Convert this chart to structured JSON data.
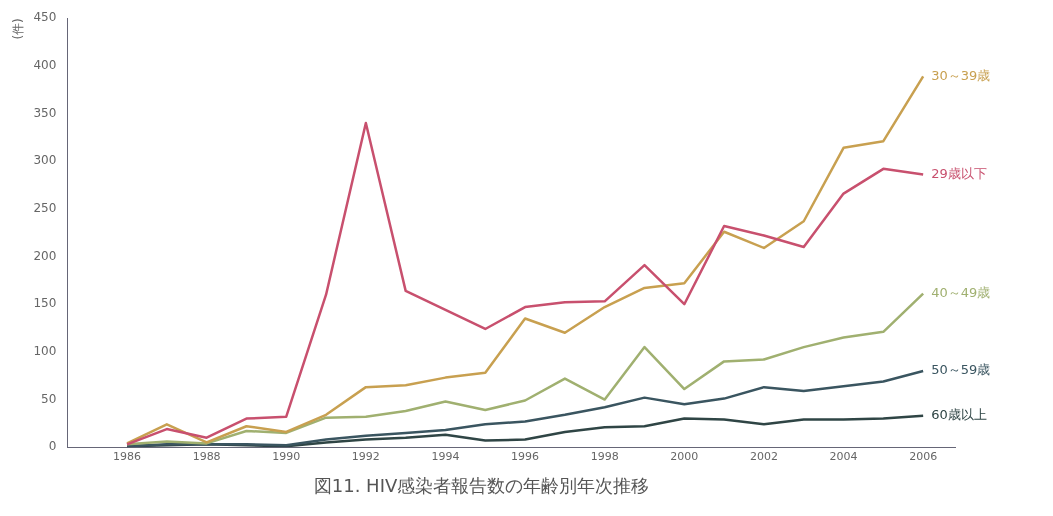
{
  "chart_data": {
    "type": "line",
    "title": "図11. HIV感染者報告数の年齢別年次推移",
    "ylabel": "(件)",
    "x": [
      1986,
      1987,
      1988,
      1989,
      1990,
      1991,
      1992,
      1993,
      1994,
      1995,
      1996,
      1997,
      1998,
      1999,
      2000,
      2001,
      2002,
      2003,
      2004,
      2005,
      2006
    ],
    "series": [
      {
        "name": "29歳以下",
        "color": "#c8506e",
        "values": [
          3,
          19,
          10,
          30,
          32,
          160,
          340,
          164,
          144,
          124,
          147,
          152,
          153,
          191,
          150,
          232,
          222,
          210,
          266,
          292,
          286
        ]
      },
      {
        "name": "30～39歳",
        "color": "#c8a050",
        "values": [
          4,
          24,
          5,
          22,
          16,
          34,
          63,
          65,
          73,
          78,
          135,
          120,
          147,
          167,
          172,
          226,
          209,
          237,
          314,
          321,
          389
        ]
      },
      {
        "name": "40～49歳",
        "color": "#a0b070",
        "values": [
          3,
          6,
          4,
          17,
          15,
          31,
          32,
          38,
          48,
          39,
          49,
          72,
          50,
          105,
          61,
          90,
          92,
          105,
          115,
          121,
          161
        ]
      },
      {
        "name": "50～59歳",
        "color": "#3a5560",
        "values": [
          1,
          3,
          3,
          3,
          2,
          8,
          12,
          15,
          18,
          24,
          27,
          34,
          42,
          52,
          45,
          51,
          63,
          59,
          64,
          69,
          80
        ]
      },
      {
        "name": "60歳以上",
        "color": "#2f4545",
        "values": [
          1,
          2,
          3,
          2,
          1,
          5,
          8,
          10,
          13,
          7,
          8,
          16,
          21,
          22,
          30,
          29,
          24,
          29,
          29,
          30,
          33
        ]
      }
    ],
    "xlim": [
      1984.5,
      2006.8
    ],
    "xticks": [
      1986,
      1988,
      1990,
      1992,
      1994,
      1996,
      1998,
      2000,
      2002,
      2004,
      2006
    ],
    "ylim": [
      0,
      450
    ],
    "yticks": [
      0,
      50,
      100,
      150,
      200,
      250,
      300,
      350,
      400,
      450
    ],
    "grid": false,
    "legend": false,
    "marker": "none",
    "line_style": "solid"
  }
}
